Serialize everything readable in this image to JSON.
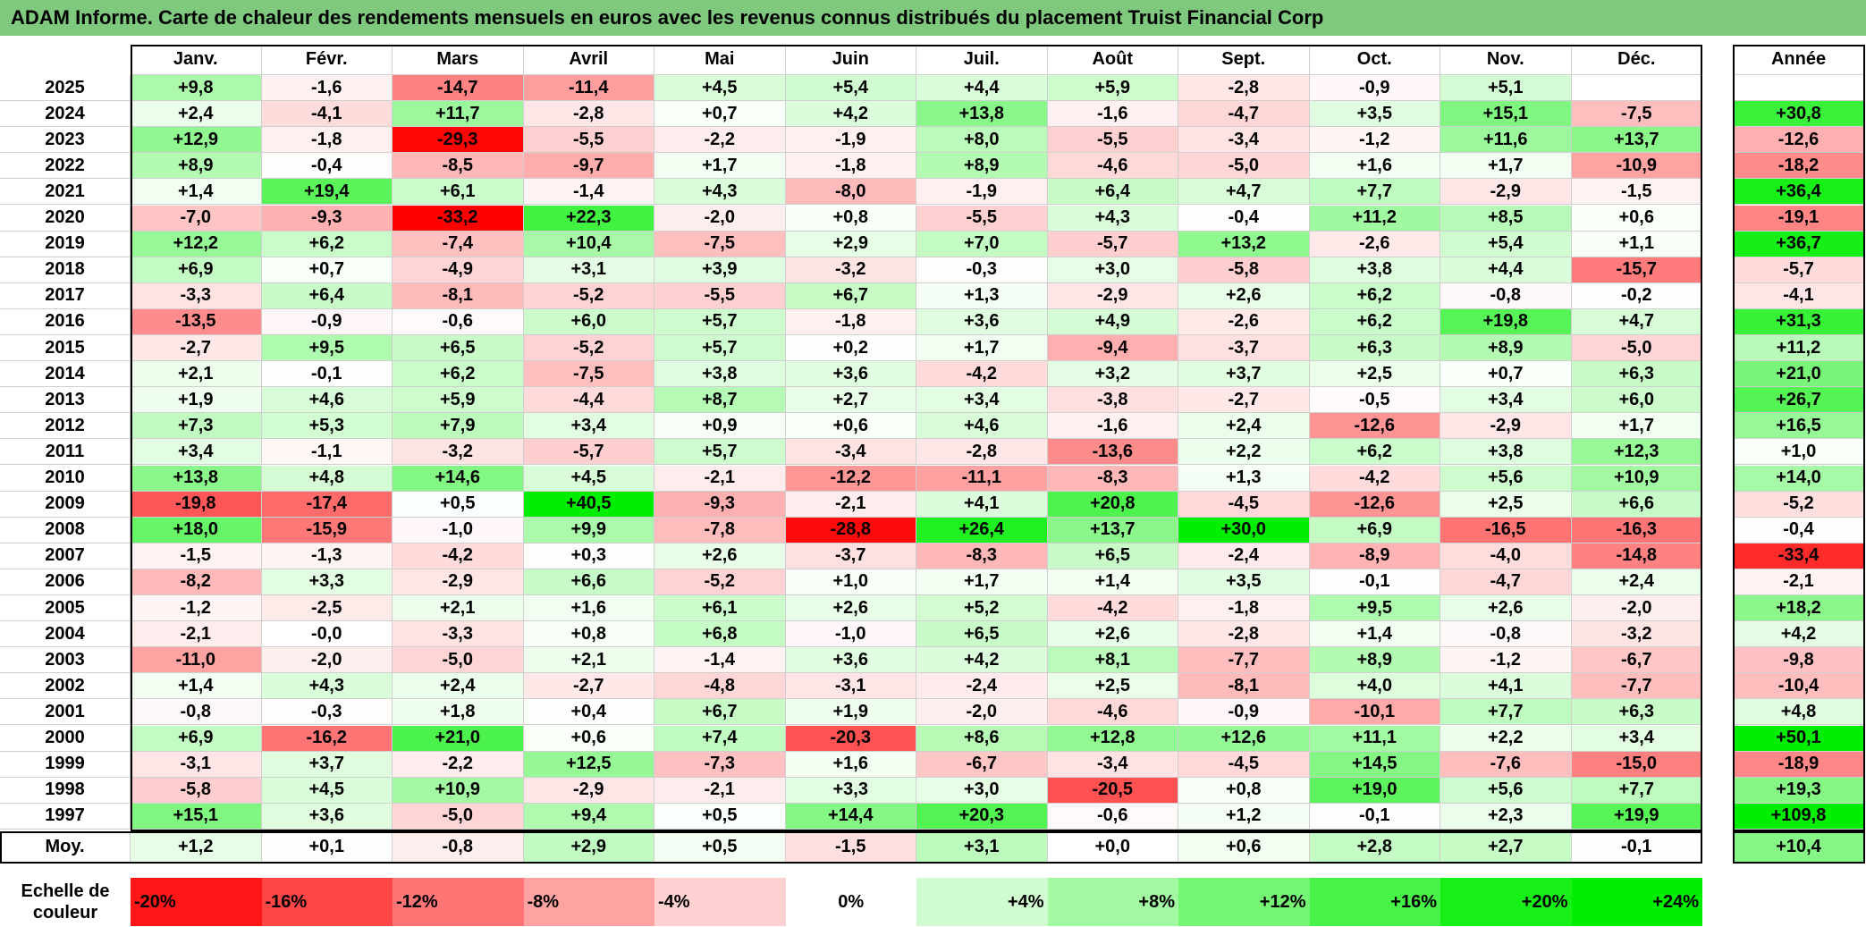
{
  "title": "ADAM Informe. Carte de chaleur des rendements mensuels en euros avec les revenus connus distribués du placement Truist Financial Corp",
  "chart_data": {
    "type": "heatmap",
    "months": [
      "Janv.",
      "Févr.",
      "Mars",
      "Avril",
      "Mai",
      "Juin",
      "Juil.",
      "Août",
      "Sept.",
      "Oct.",
      "Nov.",
      "Déc."
    ],
    "year_header": "Année",
    "rows": [
      {
        "year": "2025",
        "values": [
          "+9,8",
          "-1,6",
          "-14,7",
          "-11,4",
          "+4,5",
          "+5,4",
          "+4,4",
          "+5,9",
          "-2,8",
          "-0,9",
          "+5,1",
          ""
        ],
        "annual": ""
      },
      {
        "year": "2024",
        "values": [
          "+2,4",
          "-4,1",
          "+11,7",
          "-2,8",
          "+0,7",
          "+4,2",
          "+13,8",
          "-1,6",
          "-4,7",
          "+3,5",
          "+15,1",
          "-7,5"
        ],
        "annual": "+30,8"
      },
      {
        "year": "2023",
        "values": [
          "+12,9",
          "-1,8",
          "-29,3",
          "-5,5",
          "-2,2",
          "-1,9",
          "+8,0",
          "-5,5",
          "-3,4",
          "-1,2",
          "+11,6",
          "+13,7"
        ],
        "annual": "-12,6"
      },
      {
        "year": "2022",
        "values": [
          "+8,9",
          "-0,4",
          "-8,5",
          "-9,7",
          "+1,7",
          "-1,8",
          "+8,9",
          "-4,6",
          "-5,0",
          "+1,6",
          "+1,7",
          "-10,9"
        ],
        "annual": "-18,2"
      },
      {
        "year": "2021",
        "values": [
          "+1,4",
          "+19,4",
          "+6,1",
          "-1,4",
          "+4,3",
          "-8,0",
          "-1,9",
          "+6,4",
          "+4,7",
          "+7,7",
          "-2,9",
          "-1,5"
        ],
        "annual": "+36,4"
      },
      {
        "year": "2020",
        "values": [
          "-7,0",
          "-9,3",
          "-33,2",
          "+22,3",
          "-2,0",
          "+0,8",
          "-5,5",
          "+4,3",
          "-0,4",
          "+11,2",
          "+8,5",
          "+0,6"
        ],
        "annual": "-19,1"
      },
      {
        "year": "2019",
        "values": [
          "+12,2",
          "+6,2",
          "-7,4",
          "+10,4",
          "-7,5",
          "+2,9",
          "+7,0",
          "-5,7",
          "+13,2",
          "-2,6",
          "+5,4",
          "+1,1"
        ],
        "annual": "+36,7"
      },
      {
        "year": "2018",
        "values": [
          "+6,9",
          "+0,7",
          "-4,9",
          "+3,1",
          "+3,9",
          "-3,2",
          "-0,3",
          "+3,0",
          "-5,8",
          "+3,8",
          "+4,4",
          "-15,7"
        ],
        "annual": "-5,7"
      },
      {
        "year": "2017",
        "values": [
          "-3,3",
          "+6,4",
          "-8,1",
          "-5,2",
          "-5,5",
          "+6,7",
          "+1,3",
          "-2,9",
          "+2,6",
          "+6,2",
          "-0,8",
          "-0,2"
        ],
        "annual": "-4,1"
      },
      {
        "year": "2016",
        "values": [
          "-13,5",
          "-0,9",
          "-0,6",
          "+6,0",
          "+5,7",
          "-1,8",
          "+3,6",
          "+4,9",
          "-2,6",
          "+6,2",
          "+19,8",
          "+4,7"
        ],
        "annual": "+31,3"
      },
      {
        "year": "2015",
        "values": [
          "-2,7",
          "+9,5",
          "+6,5",
          "-5,2",
          "+5,7",
          "+0,2",
          "+1,7",
          "-9,4",
          "-3,7",
          "+6,3",
          "+8,9",
          "-5,0"
        ],
        "annual": "+11,2"
      },
      {
        "year": "2014",
        "values": [
          "+2,1",
          "-0,1",
          "+6,2",
          "-7,5",
          "+3,8",
          "+3,6",
          "-4,2",
          "+3,2",
          "+3,7",
          "+2,5",
          "+0,7",
          "+6,3"
        ],
        "annual": "+21,0"
      },
      {
        "year": "2013",
        "values": [
          "+1,9",
          "+4,6",
          "+5,9",
          "-4,4",
          "+8,7",
          "+2,7",
          "+3,4",
          "-3,8",
          "-2,7",
          "-0,5",
          "+3,4",
          "+6,0"
        ],
        "annual": "+26,7"
      },
      {
        "year": "2012",
        "values": [
          "+7,3",
          "+5,3",
          "+7,9",
          "+3,4",
          "+0,9",
          "+0,6",
          "+4,6",
          "-1,6",
          "+2,4",
          "-12,6",
          "-2,9",
          "+1,7"
        ],
        "annual": "+16,5"
      },
      {
        "year": "2011",
        "values": [
          "+3,4",
          "-1,1",
          "-3,2",
          "-5,7",
          "+5,7",
          "-3,4",
          "-2,8",
          "-13,6",
          "+2,2",
          "+6,2",
          "+3,8",
          "+12,3"
        ],
        "annual": "+1,0"
      },
      {
        "year": "2010",
        "values": [
          "+13,8",
          "+4,8",
          "+14,6",
          "+4,5",
          "-2,1",
          "-12,2",
          "-11,1",
          "-8,3",
          "+1,3",
          "-4,2",
          "+5,6",
          "+10,9"
        ],
        "annual": "+14,0"
      },
      {
        "year": "2009",
        "values": [
          "-19,8",
          "-17,4",
          "+0,5",
          "+40,5",
          "-9,3",
          "-2,1",
          "+4,1",
          "+20,8",
          "-4,5",
          "-12,6",
          "+2,5",
          "+6,6"
        ],
        "annual": "-5,2"
      },
      {
        "year": "2008",
        "values": [
          "+18,0",
          "-15,9",
          "-1,0",
          "+9,9",
          "-7,8",
          "-28,8",
          "+26,4",
          "+13,7",
          "+30,0",
          "+6,9",
          "-16,5",
          "-16,3"
        ],
        "annual": "-0,4"
      },
      {
        "year": "2007",
        "values": [
          "-1,5",
          "-1,3",
          "-4,2",
          "+0,3",
          "+2,6",
          "-3,7",
          "-8,3",
          "+6,5",
          "-2,4",
          "-8,9",
          "-4,0",
          "-14,8"
        ],
        "annual": "-33,4"
      },
      {
        "year": "2006",
        "values": [
          "-8,2",
          "+3,3",
          "-2,9",
          "+6,6",
          "-5,2",
          "+1,0",
          "+1,7",
          "+1,4",
          "+3,5",
          "-0,1",
          "-4,7",
          "+2,4"
        ],
        "annual": "-2,1"
      },
      {
        "year": "2005",
        "values": [
          "-1,2",
          "-2,5",
          "+2,1",
          "+1,6",
          "+6,1",
          "+2,6",
          "+5,2",
          "-4,2",
          "-1,8",
          "+9,5",
          "+2,6",
          "-2,0"
        ],
        "annual": "+18,2"
      },
      {
        "year": "2004",
        "values": [
          "-2,1",
          "-0,0",
          "-3,3",
          "+0,8",
          "+6,8",
          "-1,0",
          "+6,5",
          "+2,6",
          "-2,8",
          "+1,4",
          "-0,8",
          "-3,2"
        ],
        "annual": "+4,2"
      },
      {
        "year": "2003",
        "values": [
          "-11,0",
          "-2,0",
          "-5,0",
          "+2,1",
          "-1,4",
          "+3,6",
          "+4,2",
          "+8,1",
          "-7,7",
          "+8,9",
          "-1,2",
          "-6,7"
        ],
        "annual": "-9,8"
      },
      {
        "year": "2002",
        "values": [
          "+1,4",
          "+4,3",
          "+2,4",
          "-2,7",
          "-4,8",
          "-3,1",
          "-2,4",
          "+2,5",
          "-8,1",
          "+4,0",
          "+4,1",
          "-7,7"
        ],
        "annual": "-10,4"
      },
      {
        "year": "2001",
        "values": [
          "-0,8",
          "-0,3",
          "+1,8",
          "+0,4",
          "+6,7",
          "+1,9",
          "-2,0",
          "-4,6",
          "-0,9",
          "-10,1",
          "+7,7",
          "+6,3"
        ],
        "annual": "+4,8"
      },
      {
        "year": "2000",
        "values": [
          "+6,9",
          "-16,2",
          "+21,0",
          "+0,6",
          "+7,4",
          "-20,3",
          "+8,6",
          "+12,8",
          "+12,6",
          "+11,1",
          "+2,2",
          "+3,4"
        ],
        "annual": "+50,1"
      },
      {
        "year": "1999",
        "values": [
          "-3,1",
          "+3,7",
          "-2,2",
          "+12,5",
          "-7,3",
          "+1,6",
          "-6,7",
          "-3,4",
          "-4,5",
          "+14,5",
          "-7,6",
          "-15,0"
        ],
        "annual": "-18,9"
      },
      {
        "year": "1998",
        "values": [
          "-5,8",
          "+4,5",
          "+10,9",
          "-2,9",
          "-2,1",
          "+3,3",
          "+3,0",
          "-20,5",
          "+0,8",
          "+19,0",
          "+5,6",
          "+7,7"
        ],
        "annual": "+19,3"
      },
      {
        "year": "1997",
        "values": [
          "+15,1",
          "+3,6",
          "-5,0",
          "+9,4",
          "+0,5",
          "+14,4",
          "+20,3",
          "-0,6",
          "+1,2",
          "-0,1",
          "+2,3",
          "+19,9"
        ],
        "annual": "+109,8"
      }
    ],
    "average": {
      "label": "Moy.",
      "values": [
        "+1,2",
        "+0,1",
        "-0,8",
        "+2,9",
        "+0,5",
        "-1,5",
        "+3,1",
        "+0,0",
        "+0,6",
        "+2,8",
        "+2,7",
        "-0,1"
      ],
      "annual": "+10,4"
    },
    "color_scale": {
      "label_line1": "Echelle de",
      "label_line2": "couleur",
      "stops": [
        "-20%",
        "-16%",
        "-12%",
        "-8%",
        "-4%",
        "0%",
        "+4%",
        "+8%",
        "+12%",
        "+16%",
        "+20%",
        "+24%"
      ],
      "stop_values": [
        -20,
        -16,
        -12,
        -8,
        -4,
        0,
        4,
        8,
        12,
        16,
        20,
        24
      ]
    },
    "colors": {
      "negative_max": "#ff0000",
      "neutral": "#ffffff",
      "positive_max": "#00ee00",
      "title_bg": "#7fc97f"
    }
  }
}
